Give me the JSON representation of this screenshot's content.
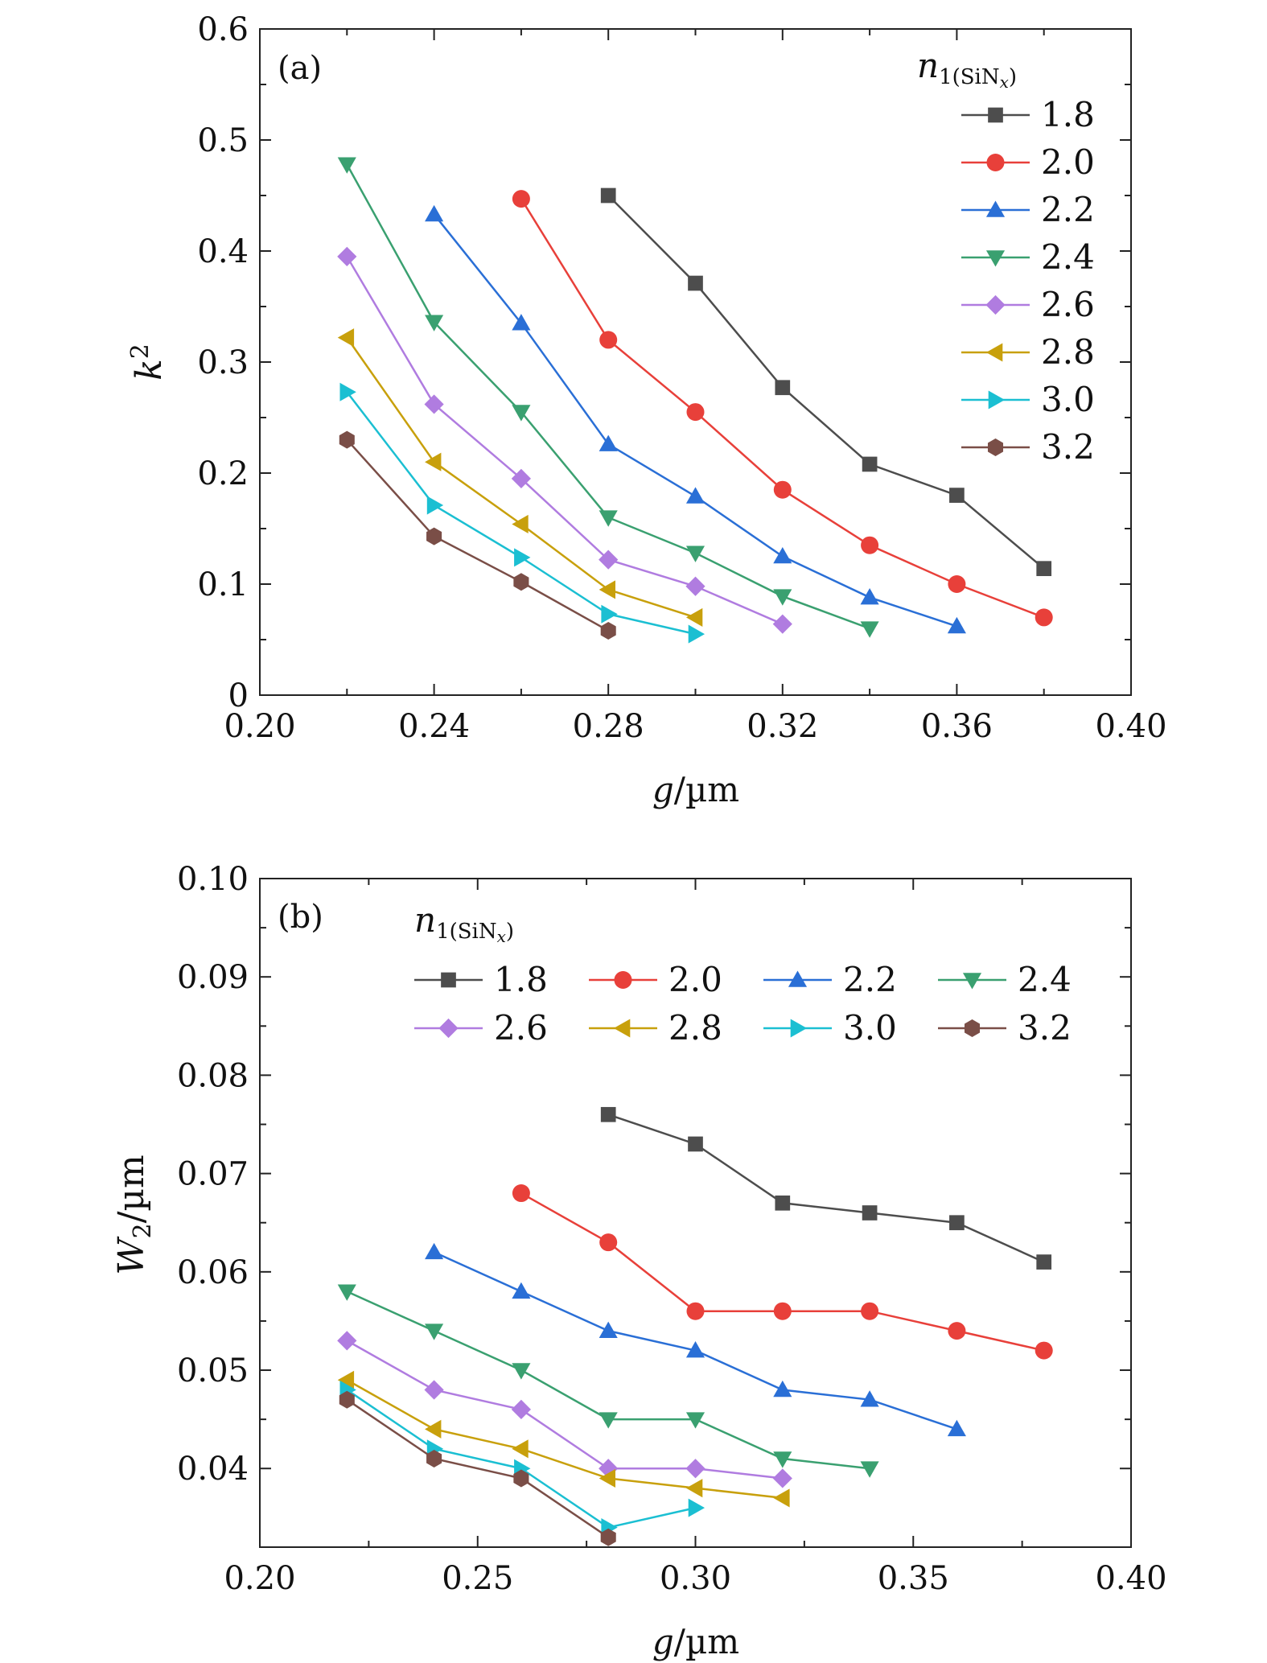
{
  "chart_data": [
    {
      "type": "line",
      "panel_label": "(a)",
      "xlabel": "g/µm",
      "ylabel": "k²",
      "xlim": [
        0.2,
        0.4
      ],
      "ylim": [
        0,
        0.6
      ],
      "xticks": [
        "0.20",
        "0.24",
        "0.28",
        "0.32",
        "0.36",
        "0.40"
      ],
      "yticks": [
        "0",
        "0.1",
        "0.2",
        "0.3",
        "0.4",
        "0.5",
        "0.6"
      ],
      "legend_title": "n1(SiNx)",
      "legend_position": "top-right",
      "series": [
        {
          "name": "1.8",
          "color": "#4d4d4d",
          "marker": "square",
          "x": [
            0.28,
            0.3,
            0.32,
            0.34,
            0.36,
            0.38
          ],
          "y": [
            0.45,
            0.371,
            0.277,
            0.208,
            0.18,
            0.114
          ]
        },
        {
          "name": "2.0",
          "color": "#e8403a",
          "marker": "circle",
          "x": [
            0.26,
            0.28,
            0.3,
            0.32,
            0.34,
            0.36,
            0.38
          ],
          "y": [
            0.447,
            0.32,
            0.255,
            0.185,
            0.135,
            0.1,
            0.07
          ]
        },
        {
          "name": "2.2",
          "color": "#2a6fd6",
          "marker": "triangle-up",
          "x": [
            0.24,
            0.26,
            0.28,
            0.3,
            0.32,
            0.34,
            0.36
          ],
          "y": [
            0.433,
            0.335,
            0.226,
            0.179,
            0.125,
            0.088,
            0.062
          ]
        },
        {
          "name": "2.4",
          "color": "#3aa070",
          "marker": "triangle-down",
          "x": [
            0.22,
            0.24,
            0.26,
            0.28,
            0.3,
            0.32,
            0.34
          ],
          "y": [
            0.478,
            0.336,
            0.255,
            0.16,
            0.128,
            0.089,
            0.06
          ]
        },
        {
          "name": "2.6",
          "color": "#b07ce0",
          "marker": "diamond",
          "x": [
            0.22,
            0.24,
            0.26,
            0.28,
            0.3,
            0.32
          ],
          "y": [
            0.395,
            0.262,
            0.195,
            0.122,
            0.098,
            0.064
          ]
        },
        {
          "name": "2.8",
          "color": "#c8a00c",
          "marker": "triangle-left",
          "x": [
            0.22,
            0.24,
            0.26,
            0.28,
            0.3
          ],
          "y": [
            0.322,
            0.21,
            0.154,
            0.095,
            0.07
          ]
        },
        {
          "name": "3.0",
          "color": "#1bbfd2",
          "marker": "triangle-right",
          "x": [
            0.22,
            0.24,
            0.26,
            0.28,
            0.3
          ],
          "y": [
            0.273,
            0.171,
            0.124,
            0.073,
            0.055
          ]
        },
        {
          "name": "3.2",
          "color": "#7a4e47",
          "marker": "hexagon",
          "x": [
            0.22,
            0.24,
            0.26,
            0.28
          ],
          "y": [
            0.23,
            0.143,
            0.102,
            0.058
          ]
        }
      ]
    },
    {
      "type": "line",
      "panel_label": "(b)",
      "xlabel": "g/µm",
      "ylabel": "W2/µm",
      "xlim": [
        0.2,
        0.4
      ],
      "ylim": [
        0.032,
        0.1
      ],
      "xticks": [
        "0.20",
        "0.25",
        "0.30",
        "0.35",
        "0.40"
      ],
      "yticks": [
        "0.04",
        "0.05",
        "0.06",
        "0.07",
        "0.08",
        "0.09",
        "0.10"
      ],
      "legend_title": "n1(SiNx)",
      "legend_position": "top",
      "series": [
        {
          "name": "1.8",
          "color": "#4d4d4d",
          "marker": "square",
          "x": [
            0.28,
            0.3,
            0.32,
            0.34,
            0.36,
            0.38
          ],
          "y": [
            0.076,
            0.073,
            0.067,
            0.066,
            0.065,
            0.061
          ]
        },
        {
          "name": "2.0",
          "color": "#e8403a",
          "marker": "circle",
          "x": [
            0.26,
            0.28,
            0.3,
            0.32,
            0.34,
            0.36,
            0.38
          ],
          "y": [
            0.068,
            0.063,
            0.056,
            0.056,
            0.056,
            0.054,
            0.052
          ]
        },
        {
          "name": "2.2",
          "color": "#2a6fd6",
          "marker": "triangle-up",
          "x": [
            0.24,
            0.26,
            0.28,
            0.3,
            0.32,
            0.34,
            0.36
          ],
          "y": [
            0.062,
            0.058,
            0.054,
            0.052,
            0.048,
            0.047,
            0.044
          ]
        },
        {
          "name": "2.4",
          "color": "#3aa070",
          "marker": "triangle-down",
          "x": [
            0.22,
            0.24,
            0.26,
            0.28,
            0.3,
            0.32,
            0.34
          ],
          "y": [
            0.058,
            0.054,
            0.05,
            0.045,
            0.045,
            0.041,
            0.04
          ]
        },
        {
          "name": "2.6",
          "color": "#b07ce0",
          "marker": "diamond",
          "x": [
            0.22,
            0.24,
            0.26,
            0.28,
            0.3,
            0.32
          ],
          "y": [
            0.053,
            0.048,
            0.046,
            0.04,
            0.04,
            0.039
          ]
        },
        {
          "name": "2.8",
          "color": "#c8a00c",
          "marker": "triangle-left",
          "x": [
            0.22,
            0.24,
            0.26,
            0.28,
            0.3,
            0.32
          ],
          "y": [
            0.049,
            0.044,
            0.042,
            0.039,
            0.038,
            0.037
          ]
        },
        {
          "name": "3.0",
          "color": "#1bbfd2",
          "marker": "triangle-right",
          "x": [
            0.22,
            0.24,
            0.26,
            0.28,
            0.3
          ],
          "y": [
            0.048,
            0.042,
            0.04,
            0.034,
            0.036
          ]
        },
        {
          "name": "3.2",
          "color": "#7a4e47",
          "marker": "hexagon",
          "x": [
            0.22,
            0.24,
            0.26,
            0.28
          ],
          "y": [
            0.047,
            0.041,
            0.039,
            0.033
          ]
        }
      ]
    }
  ]
}
